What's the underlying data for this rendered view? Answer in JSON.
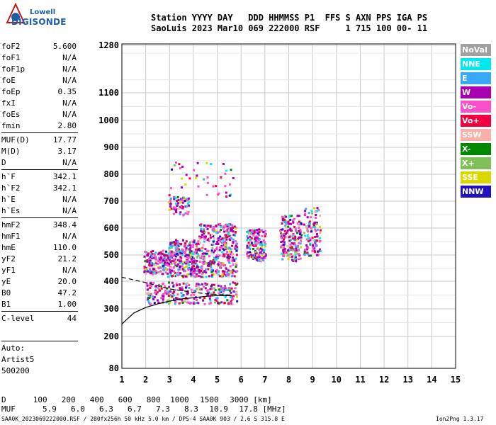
{
  "logo": {
    "line1": "Lowell",
    "line2": "DIGISONDE"
  },
  "header": {
    "line1": "Station YYYY DAY   DDD HHMMSS P1  FFS S AXN PPS IGA PS",
    "line2": "SaoLuis 2023 Mar10 069 222000 RSF     1 715 100 00- 11"
  },
  "params": {
    "group1": [
      {
        "label": "foF2",
        "value": "5.600"
      },
      {
        "label": "foF1",
        "value": "N/A"
      },
      {
        "label": "foF1p",
        "value": "N/A"
      },
      {
        "label": "foE",
        "value": "N/A"
      },
      {
        "label": "foEp",
        "value": "0.35"
      },
      {
        "label": "fxI",
        "value": "N/A"
      },
      {
        "label": "foEs",
        "value": "N/A"
      },
      {
        "label": "fmin",
        "value": "2.80"
      }
    ],
    "group2": [
      {
        "label": "MUF(D)",
        "value": "17.77"
      },
      {
        "label": "M(D)",
        "value": "3.17"
      },
      {
        "label": "D",
        "value": "N/A"
      }
    ],
    "group3": [
      {
        "label": "h`F",
        "value": "342.1"
      },
      {
        "label": "h`F2",
        "value": "342.1"
      },
      {
        "label": "h`E",
        "value": "N/A"
      },
      {
        "label": "h`Es",
        "value": "N/A"
      }
    ],
    "group4": [
      {
        "label": "hmF2",
        "value": "348.4"
      },
      {
        "label": "hmF1",
        "value": "N/A"
      },
      {
        "label": "hmE",
        "value": "110.0"
      },
      {
        "label": "yF2",
        "value": "21.2"
      },
      {
        "label": "yF1",
        "value": "N/A"
      },
      {
        "label": "yE",
        "value": "20.0"
      },
      {
        "label": "B0",
        "value": "47.2"
      },
      {
        "label": "B1",
        "value": "1.00"
      }
    ],
    "group5": [
      {
        "label": "C-level",
        "value": "44"
      }
    ]
  },
  "auto": {
    "line1": "Auto:",
    "line2": "Artist5",
    "line3": "500200"
  },
  "legend": [
    {
      "label": "NoVal",
      "color": "#a0a0a0"
    },
    {
      "label": "NNE",
      "color": "#00e8f0"
    },
    {
      "label": "E",
      "color": "#38a8f8"
    },
    {
      "label": "W",
      "color": "#a800b0"
    },
    {
      "label": "Vo-",
      "color": "#f850c8"
    },
    {
      "label": "Vo+",
      "color": "#f00040"
    },
    {
      "label": "SSW",
      "color": "#f8b0a8"
    },
    {
      "label": "X-",
      "color": "#008800"
    },
    {
      "label": "X+",
      "color": "#80c058"
    },
    {
      "label": "SSE",
      "color": "#d8d800"
    },
    {
      "label": "NNW",
      "color": "#2010c0"
    }
  ],
  "muf_table": {
    "d_label": "D",
    "d_values": [
      "100",
      "200",
      "400",
      "600",
      "800",
      "1000",
      "1500",
      "3000"
    ],
    "d_unit": "[km]",
    "muf_label": "MUF",
    "muf_values": [
      "5.9",
      "6.0",
      "6.3",
      "6.7",
      "7.3",
      "8.3",
      "10.9",
      "17.8"
    ],
    "muf_unit": "[MHz]"
  },
  "footer": "SAA0K_2023069222000.RSF / 280fx256h 50 kHz 5.0 km / DPS-4 SAA0K 903 / 2.6 S 315.8 E",
  "version": "Ion2Png 1.3.17",
  "chart_data": {
    "type": "scatter",
    "x_ticks": [
      1,
      2,
      3,
      4,
      5,
      6,
      7,
      8,
      9,
      10,
      11,
      12,
      13,
      14,
      15
    ],
    "y_ticks": [
      80,
      200,
      300,
      400,
      500,
      600,
      700,
      800,
      900,
      1000,
      1100,
      1280
    ],
    "xlim": [
      1,
      15
    ],
    "ylim": [
      80,
      1280
    ],
    "y_scale": "virtual-height",
    "grid": true,
    "clusters": [
      {
        "x": [
          1.9,
          2.9
        ],
        "y": [
          430,
          520
        ],
        "count": 160
      },
      {
        "x": [
          2.9,
          4.2
        ],
        "y": [
          420,
          560
        ],
        "count": 300
      },
      {
        "x": [
          4.2,
          5.8
        ],
        "y": [
          420,
          620
        ],
        "count": 360
      },
      {
        "x": [
          2.9,
          3.8
        ],
        "y": [
          650,
          720
        ],
        "count": 70
      },
      {
        "x": [
          6.2,
          7.0
        ],
        "y": [
          480,
          600
        ],
        "count": 160
      },
      {
        "x": [
          7.6,
          8.5
        ],
        "y": [
          480,
          650
        ],
        "count": 180
      },
      {
        "x": [
          8.6,
          9.3
        ],
        "y": [
          500,
          680
        ],
        "count": 110
      },
      {
        "x": [
          2.0,
          5.8
        ],
        "y": [
          320,
          400
        ],
        "count": 260
      },
      {
        "x": [
          2.9,
          5.8
        ],
        "y": [
          720,
          850
        ],
        "count": 40
      }
    ],
    "profile_curve": {
      "x": [
        1.0,
        1.5,
        2.0,
        2.5,
        3.0,
        3.5,
        4.0,
        4.5,
        5.0,
        5.5,
        5.6
      ],
      "y": [
        245,
        285,
        305,
        318,
        328,
        336,
        340,
        345,
        348,
        348,
        348
      ]
    },
    "dashed_curve": {
      "x": [
        1.0,
        2.0,
        3.0,
        4.0,
        4.5,
        5.0,
        5.6
      ],
      "y": [
        415,
        395,
        372,
        360,
        355,
        352,
        350
      ]
    }
  }
}
